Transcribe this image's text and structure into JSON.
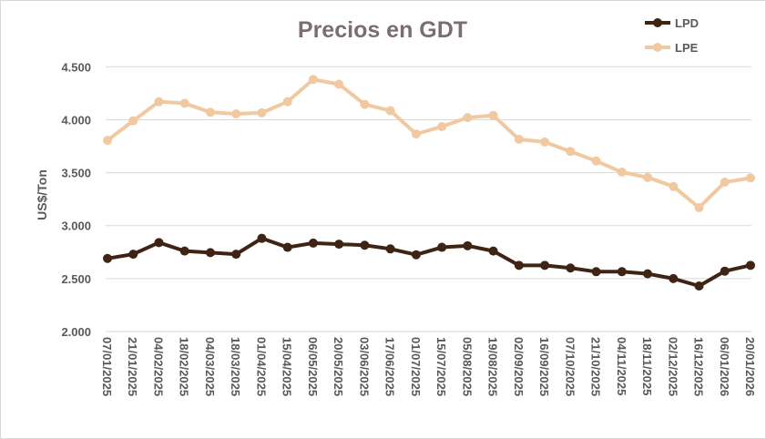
{
  "chart_data": {
    "type": "line",
    "title": "Precios en GDT",
    "xlabel": "",
    "ylabel": "US$/Ton",
    "ylim": [
      2000,
      4500
    ],
    "yticks": [
      "2.000",
      "2.500",
      "3.000",
      "3.500",
      "4.000",
      "4.500"
    ],
    "ytick_values": [
      2000,
      2500,
      3000,
      3500,
      4000,
      4500
    ],
    "grid": true,
    "legend_position": "top-right",
    "categories": [
      "07/01/2025",
      "21/01/2025",
      "04/02/2025",
      "18/02/2025",
      "04/03/2025",
      "18/03/2025",
      "01/04/2025",
      "15/04/2025",
      "06/05/2025",
      "20/05/2025",
      "03/06/2025",
      "17/06/2025",
      "01/07/2025",
      "15/07/2025",
      "05/08/2025",
      "19/08/2025",
      "02/09/2025",
      "16/09/2025",
      "07/10/2025",
      "21/10/2025",
      "04/11/2025",
      "18/11/2025",
      "02/12/2025",
      "16/12/2025",
      "06/01/2026",
      "20/01/2026"
    ],
    "series": [
      {
        "name": "LPD",
        "color": "#3f2415",
        "values": [
          2690,
          2730,
          2840,
          2760,
          2745,
          2730,
          2880,
          2795,
          2835,
          2825,
          2815,
          2780,
          2725,
          2795,
          2810,
          2760,
          2625,
          2625,
          2600,
          2565,
          2565,
          2545,
          2500,
          2430,
          2570,
          2625
        ]
      },
      {
        "name": "LPE",
        "color": "#f0c9a0",
        "values": [
          3805,
          3990,
          4170,
          4155,
          4070,
          4055,
          4065,
          4170,
          4380,
          4335,
          4145,
          4085,
          3865,
          3935,
          4020,
          4040,
          3815,
          3790,
          3700,
          3610,
          3505,
          3455,
          3370,
          3170,
          3410,
          3450
        ]
      }
    ]
  }
}
